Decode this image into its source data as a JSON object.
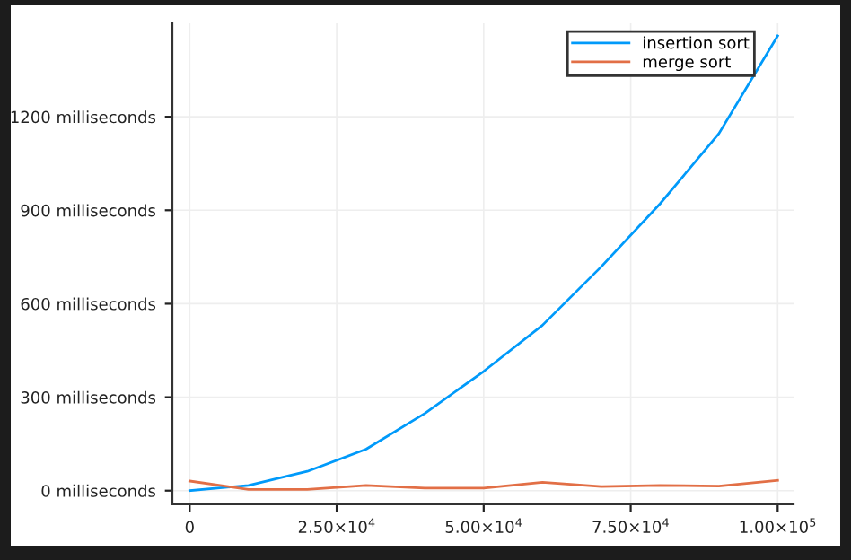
{
  "chart_data": {
    "type": "line",
    "x": [
      0,
      10000,
      20000,
      30000,
      40000,
      50000,
      60000,
      70000,
      80000,
      90000,
      100000
    ],
    "series": [
      {
        "name": "insertion sort",
        "color": "#009afa",
        "values": [
          0,
          17,
          62,
          133,
          248,
          383,
          531,
          719,
          921,
          1146,
          1460
        ]
      },
      {
        "name": "merge sort",
        "color": "#e26f46",
        "values": [
          31,
          4,
          4,
          17,
          8,
          8,
          27,
          13,
          17,
          15,
          33
        ]
      }
    ],
    "xlim": [
      -2950,
      102700
    ],
    "ylim": [
      -44,
      1500
    ],
    "xticks": [
      0,
      {
        "value": 25000,
        "label": "2.50×10$^{4}$"
      },
      {
        "value": 50000,
        "label": "5.00×10$^{4}$"
      },
      {
        "value": 75000,
        "label": "7.50×10$^{4}$"
      },
      {
        "value": 100000,
        "label": "1.00×10$^{5}$"
      }
    ],
    "yticks": [
      {
        "value": 0,
        "label": "0 milliseconds"
      },
      {
        "value": 300,
        "label": "300 milliseconds"
      },
      {
        "value": 600,
        "label": "600 milliseconds"
      },
      {
        "value": 900,
        "label": "900 milliseconds"
      },
      {
        "value": 1200,
        "label": "1200 milliseconds"
      }
    ],
    "grid": true,
    "legend": "top right",
    "marker": "none",
    "line_style": "solid"
  }
}
